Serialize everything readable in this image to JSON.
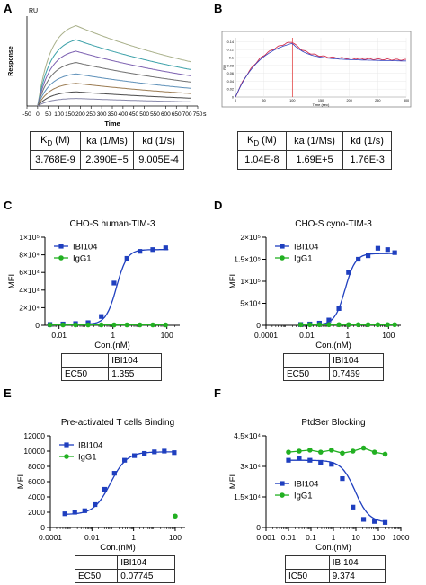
{
  "panels": {
    "A": {
      "letter": "A",
      "ylabel_top": "RU",
      "ylabel": "Response",
      "xlabel": "Time",
      "xunit": "s",
      "table": {
        "headers": [
          "K_D (M)",
          "ka (1/Ms)",
          "kd (1/s)"
        ],
        "values": [
          "3.768E-9",
          "2.390E+5",
          "9.005E-4"
        ]
      }
    },
    "B": {
      "letter": "B",
      "ylabel": "RU",
      "xlabel": "Time (sec)",
      "table": {
        "headers": [
          "K_D (M)",
          "ka (1/Ms)",
          "kd (1/s)"
        ],
        "values": [
          "1.04E-8",
          "1.69E+5",
          "1.76E-3"
        ]
      }
    },
    "C": {
      "letter": "C",
      "ec_table": {
        "col": "IBI104",
        "row_label": "EC50",
        "row_value": "1.355"
      }
    },
    "D": {
      "letter": "D",
      "ec_table": {
        "col": "IBI104",
        "row_label": "EC50",
        "row_value": "0.7469"
      }
    },
    "E": {
      "letter": "E",
      "ec_table": {
        "col": "IBI104",
        "row_label": "EC50",
        "row_value": "0.07745"
      }
    },
    "F": {
      "letter": "F",
      "ec_table": {
        "col": "IBI104",
        "row_label": "IC50",
        "row_value": "9.374"
      }
    }
  },
  "chart_data": [
    {
      "id": "A",
      "type": "line",
      "title": "",
      "xlabel": "Time",
      "ylabel": "Response",
      "xlim": [
        -50,
        750
      ],
      "xticks": [
        -50,
        0,
        50,
        100,
        150,
        200,
        250,
        300,
        350,
        400,
        450,
        500,
        550,
        600,
        650,
        700,
        750
      ],
      "series_peaks": [
        85,
        70,
        58,
        46,
        34,
        24,
        15,
        8
      ],
      "assoc_end": 180,
      "dissoc_end": 720,
      "colors": [
        "#a9b08a",
        "#3aa0a8",
        "#7b5fb0",
        "#6f6f6f",
        "#5c8fb8",
        "#9a7a50",
        "#4a4a4a",
        "#8888aa"
      ]
    },
    {
      "id": "B",
      "type": "line",
      "title": "",
      "xlabel": "Time (sec)",
      "ylabel": "RU",
      "xlim": [
        0,
        300
      ],
      "ylim": [
        0,
        0.15
      ],
      "xticks": [
        0,
        50,
        100,
        150,
        200,
        250,
        300
      ],
      "yticks": [
        0,
        0.02,
        0.04,
        0.06,
        0.08,
        0.1,
        0.12,
        0.14
      ],
      "assoc_end": 100,
      "peak": 0.14,
      "plateau": 0.1
    },
    {
      "id": "C",
      "type": "scatter",
      "title": "CHO-S human-TIM-3",
      "xlabel": "Con.(nM)",
      "ylabel": "MFI",
      "xscale": "log",
      "xlim": [
        0.003,
        300
      ],
      "ylim": [
        0,
        100000
      ],
      "xticks": [
        0.01,
        1,
        100
      ],
      "xtick_labels": [
        "0.01",
        "1",
        "100"
      ],
      "yticks": [
        0,
        20000,
        40000,
        60000,
        80000,
        100000
      ],
      "ytick_labels": [
        "0",
        "2×10⁴",
        "4×10⁴",
        "6×10⁴",
        "8×10⁴",
        "1×10⁵"
      ],
      "legend": "top-left",
      "series": [
        {
          "name": "IBI104",
          "color": "#1f3fbf",
          "marker": "square",
          "x": [
            0.0046,
            0.014,
            0.041,
            0.12,
            0.37,
            1.1,
            3.3,
            10,
            30,
            90
          ],
          "y": [
            1000,
            1500,
            2000,
            3000,
            10000,
            48000,
            76000,
            84000,
            86000,
            88000
          ],
          "fit": {
            "bottom": 1000,
            "top": 86000,
            "ec50": 1.355,
            "hill": 2.2
          }
        },
        {
          "name": "IgG1",
          "color": "#22b022",
          "marker": "circle",
          "x": [
            0.0046,
            0.014,
            0.041,
            0.12,
            0.37,
            1.1,
            3.3,
            10,
            30,
            90
          ],
          "y": [
            500,
            500,
            500,
            500,
            500,
            500,
            500,
            500,
            500,
            500
          ]
        }
      ]
    },
    {
      "id": "D",
      "type": "scatter",
      "title": "CHO-S cyno-TIM-3",
      "xlabel": "Con.(nM)",
      "ylabel": "MFI",
      "xscale": "log",
      "xlim": [
        0.0001,
        400
      ],
      "ylim": [
        0,
        200000
      ],
      "xticks": [
        0.0001,
        0.01,
        1,
        100
      ],
      "xtick_labels": [
        "0.0001",
        "0.01",
        "1",
        "100"
      ],
      "yticks": [
        0,
        50000,
        100000,
        150000,
        200000
      ],
      "ytick_labels": [
        "0",
        "5×10⁴",
        "1×10⁵",
        "1.5×10⁵",
        "2×10⁵"
      ],
      "legend": "top-left",
      "series": [
        {
          "name": "IBI104",
          "color": "#1f3fbf",
          "marker": "square",
          "x": [
            0.005,
            0.014,
            0.041,
            0.12,
            0.37,
            1.1,
            3.3,
            10,
            30,
            90,
            200
          ],
          "y": [
            2000,
            3000,
            5000,
            12000,
            38000,
            120000,
            150000,
            158000,
            175000,
            172000,
            165000
          ],
          "fit": {
            "bottom": 1000,
            "top": 163000,
            "ec50": 0.7469,
            "hill": 1.7
          }
        },
        {
          "name": "IgG1",
          "color": "#22b022",
          "marker": "circle",
          "x": [
            0.005,
            0.014,
            0.041,
            0.12,
            0.37,
            1.1,
            3.3,
            10,
            30,
            90,
            200
          ],
          "y": [
            1500,
            1500,
            1500,
            1500,
            1500,
            1500,
            1500,
            1500,
            1500,
            1500,
            1500
          ]
        }
      ]
    },
    {
      "id": "E",
      "type": "scatter",
      "title": "Pre-activated T cells Binding",
      "xlabel": "Con.(nM)",
      "ylabel": "MFI",
      "xscale": "log",
      "xlim": [
        0.0001,
        300
      ],
      "ylim": [
        0,
        12000
      ],
      "xticks": [
        0.0001,
        0.01,
        1,
        100
      ],
      "xtick_labels": [
        "0.0001",
        "0.01",
        "1",
        "100"
      ],
      "yticks": [
        0,
        2000,
        4000,
        6000,
        8000,
        10000,
        12000
      ],
      "ytick_labels": [
        "0",
        "2000",
        "4000",
        "6000",
        "8000",
        "10000",
        "12000"
      ],
      "legend": "top-left",
      "series": [
        {
          "name": "IBI104",
          "color": "#1f3fbf",
          "marker": "square",
          "x": [
            0.0005,
            0.0015,
            0.0045,
            0.014,
            0.041,
            0.12,
            0.37,
            1.1,
            3.3,
            10,
            30,
            90
          ],
          "y": [
            1800,
            2000,
            2200,
            3000,
            5000,
            7100,
            8800,
            9400,
            9700,
            9900,
            10000,
            9800
          ],
          "fit": {
            "bottom": 1700,
            "top": 9900,
            "ec50": 0.07745,
            "hill": 1.1
          }
        },
        {
          "name": "IgG1",
          "color": "#22b022",
          "marker": "circle",
          "x": [
            100
          ],
          "y": [
            1500
          ]
        }
      ]
    },
    {
      "id": "F",
      "type": "scatter",
      "title": "PtdSer Blocking",
      "xlabel": "Con.(nM)",
      "ylabel": "MFI",
      "xscale": "log",
      "xlim": [
        0.001,
        1000
      ],
      "ylim": [
        0,
        45000
      ],
      "xticks": [
        0.001,
        0.01,
        0.1,
        1,
        10,
        100,
        1000
      ],
      "xtick_labels": [
        "0.001",
        "0.01",
        "0.1",
        "1",
        "10",
        "100",
        "1000"
      ],
      "yticks": [
        0,
        15000,
        30000,
        45000
      ],
      "ytick_labels": [
        "0",
        "1.5×10⁴",
        "3×10⁴",
        "4.5×10⁴"
      ],
      "legend": "middle-left",
      "series": [
        {
          "name": "IBI104",
          "color": "#1f3fbf",
          "marker": "square",
          "x": [
            0.01,
            0.03,
            0.09,
            0.27,
            0.82,
            2.5,
            7.4,
            22,
            67,
            200
          ],
          "y": [
            33000,
            34000,
            33000,
            32000,
            31000,
            24000,
            10000,
            4000,
            3000,
            2500
          ],
          "fit": {
            "bottom": 2500,
            "top": 33000,
            "ec50": 9.374,
            "hill": -1.4
          }
        },
        {
          "name": "IgG1",
          "color": "#22b022",
          "marker": "circle",
          "x": [
            0.01,
            0.03,
            0.09,
            0.27,
            0.82,
            2.5,
            7.4,
            22,
            67,
            200
          ],
          "y": [
            37000,
            37500,
            38000,
            37000,
            38000,
            36500,
            37500,
            39000,
            37000,
            36000
          ]
        }
      ]
    }
  ]
}
